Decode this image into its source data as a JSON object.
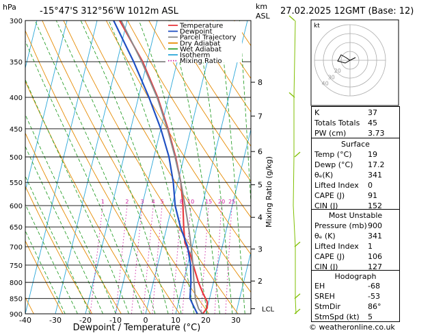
{
  "header": {
    "location": "-15°47'S  312°56'W  1012m  ASL",
    "datetime": "27.02.2025  12GMT  (Base: 12)",
    "hpa_unit": "hPa",
    "km_unit_1": "km",
    "km_unit_2": "ASL",
    "mixing_ratio_label": "Mixing Ratio (g/kg)",
    "lcl_label": "LCL"
  },
  "colors": {
    "temperature": "#e8383d",
    "dewpoint": "#1f4fc2",
    "parcel": "#8a8a8a",
    "dry_adiabat": "#e68a00",
    "wet_adiabat": "#2ca02c",
    "isotherm": "#2aa7d8",
    "mixing_ratio": "#cc1a9e",
    "wind": "#7fbf00"
  },
  "legend": [
    {
      "label": "Temperature",
      "color": "#e8383d",
      "dash": false
    },
    {
      "label": "Dewpoint",
      "color": "#1f4fc2",
      "dash": false
    },
    {
      "label": "Parcel Trajectory",
      "color": "#8a8a8a",
      "dash": false
    },
    {
      "label": "Dry Adiabat",
      "color": "#e68a00",
      "dash": false
    },
    {
      "label": "Wet Adiabat",
      "color": "#2ca02c",
      "dash": false
    },
    {
      "label": "Isotherm",
      "color": "#2aa7d8",
      "dash": false
    },
    {
      "label": "Mixing Ratio",
      "color": "#cc1a9e",
      "dash": true
    }
  ],
  "chart_data": {
    "type": "line",
    "xlabel": "Dewpoint / Temperature (°C)",
    "ylabel": "hPa",
    "xlim": [
      -40,
      35
    ],
    "ylim": [
      900,
      300
    ],
    "x_ticks": [
      -40,
      -30,
      -20,
      -10,
      0,
      10,
      20,
      30
    ],
    "pressure_ticks": [
      300,
      350,
      400,
      450,
      500,
      550,
      600,
      650,
      700,
      750,
      800,
      850,
      900
    ],
    "km_ticks": [
      {
        "label": "8",
        "p": 378
      },
      {
        "label": "7",
        "p": 429
      },
      {
        "label": "6",
        "p": 490
      },
      {
        "label": "5",
        "p": 555
      },
      {
        "label": "4",
        "p": 627
      },
      {
        "label": "3",
        "p": 706
      },
      {
        "label": "2",
        "p": 796
      }
    ],
    "lcl_pressure": 883,
    "mixing_ratio_values": [
      "1",
      "2",
      "3",
      "4",
      "5",
      "8",
      "10",
      "15",
      "20",
      "25"
    ],
    "mixing_ratio_label_pressure": 600,
    "series": [
      {
        "name": "Temperature",
        "color": "#e8383d",
        "points": [
          [
            19,
            900
          ],
          [
            20,
            880
          ],
          [
            19.5,
            860
          ],
          [
            17.5,
            835
          ],
          [
            15,
            800
          ],
          [
            12.5,
            760
          ],
          [
            10,
            720
          ],
          [
            7.3,
            690
          ],
          [
            5.6,
            650
          ],
          [
            3.6,
            600
          ],
          [
            1.0,
            550
          ],
          [
            -2.8,
            500
          ],
          [
            -7.6,
            450
          ],
          [
            -13.6,
            400
          ],
          [
            -21.5,
            350
          ],
          [
            -32.5,
            300
          ]
        ]
      },
      {
        "name": "Dewpoint",
        "color": "#1f4fc2",
        "points": [
          [
            17.2,
            900
          ],
          [
            15,
            870
          ],
          [
            13.5,
            850
          ],
          [
            12.5,
            800
          ],
          [
            11.0,
            750
          ],
          [
            8.5,
            700
          ],
          [
            4.5,
            650
          ],
          [
            1.0,
            600
          ],
          [
            -1.5,
            550
          ],
          [
            -5,
            500
          ],
          [
            -10,
            450
          ],
          [
            -16.5,
            400
          ],
          [
            -24.5,
            350
          ],
          [
            -34.5,
            300
          ]
        ]
      },
      {
        "name": "Parcel Trajectory",
        "color": "#8a8a8a",
        "points": [
          [
            19,
            900
          ],
          [
            17.2,
            883
          ],
          [
            15.3,
            850
          ],
          [
            13.5,
            800
          ],
          [
            11.8,
            750
          ],
          [
            9.7,
            700
          ],
          [
            7.2,
            650
          ],
          [
            4.3,
            600
          ],
          [
            1.0,
            550
          ],
          [
            -3.0,
            500
          ],
          [
            -7.8,
            450
          ],
          [
            -13.8,
            400
          ],
          [
            -21.8,
            350
          ],
          [
            -32.0,
            300
          ]
        ]
      }
    ]
  },
  "hodograph": {
    "unit": "kt",
    "ring_labels": [
      "20",
      "30",
      "40"
    ]
  },
  "indices": {
    "rows": [
      {
        "k": "K",
        "v": "37"
      },
      {
        "k": "Totals Totals",
        "v": "45"
      },
      {
        "k": "PW (cm)",
        "v": "3.73"
      }
    ]
  },
  "surface": {
    "title": "Surface",
    "rows": [
      {
        "k": "Temp (°C)",
        "v": "19"
      },
      {
        "k": "Dewp (°C)",
        "v": "17.2"
      },
      {
        "k": "θₑ(K)",
        "v": "341"
      },
      {
        "k": "Lifted Index",
        "v": "0"
      },
      {
        "k": "CAPE (J)",
        "v": "91"
      },
      {
        "k": "CIN (J)",
        "v": "152"
      }
    ]
  },
  "most_unstable": {
    "title": "Most Unstable",
    "rows": [
      {
        "k": "Pressure (mb)",
        "v": "900"
      },
      {
        "k": "θₑ (K)",
        "v": "341"
      },
      {
        "k": "Lifted Index",
        "v": "1"
      },
      {
        "k": "CAPE (J)",
        "v": "106"
      },
      {
        "k": "CIN (J)",
        "v": "127"
      }
    ]
  },
  "hodograph_box": {
    "title": "Hodograph",
    "rows": [
      {
        "k": "EH",
        "v": "-68"
      },
      {
        "k": "SREH",
        "v": "-53"
      },
      {
        "k": "StmDir",
        "v": "86°"
      },
      {
        "k": "StmSpd (kt)",
        "v": "5"
      }
    ]
  },
  "footer": {
    "copyright": "© weatheronline.co.uk"
  }
}
